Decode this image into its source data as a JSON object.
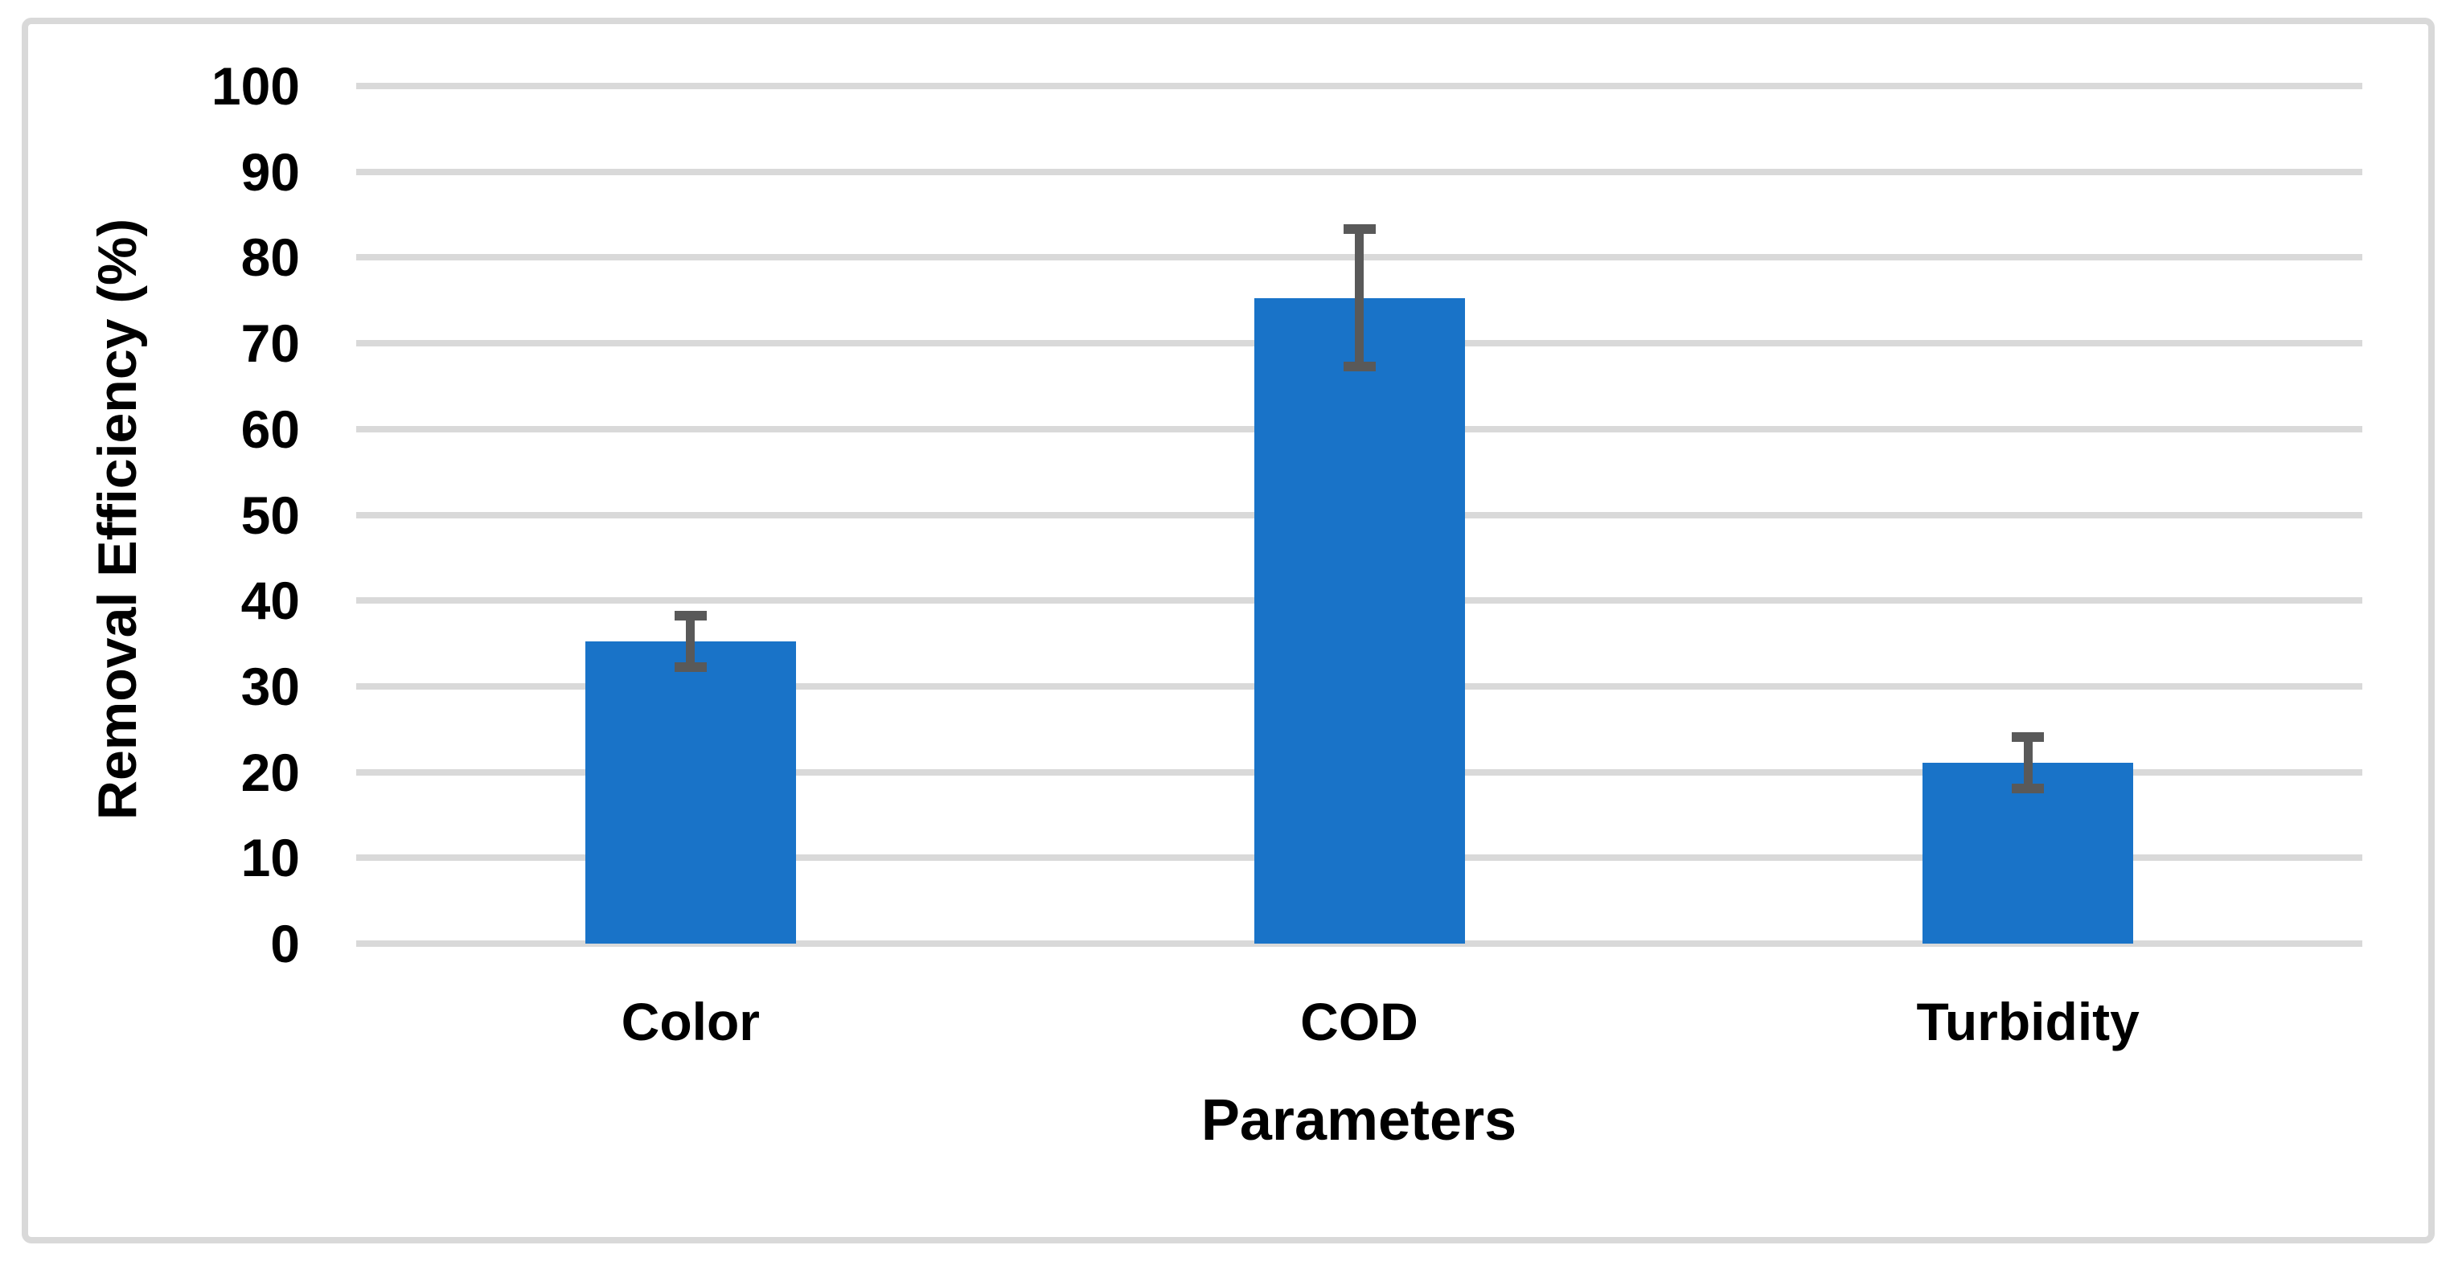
{
  "chart_data": {
    "type": "bar",
    "title": "",
    "xlabel": "Parameters",
    "ylabel": "Removal Efficiency (%)",
    "categories": [
      "Color",
      "COD",
      "Turbidity"
    ],
    "series": [
      {
        "name": "Removal Efficiency",
        "values": [
          35.2,
          75.3,
          21.1
        ],
        "errors": [
          3,
          8,
          3
        ]
      }
    ],
    "values": [
      35.2,
      75.3,
      21.1
    ],
    "errors": [
      3,
      8,
      3
    ],
    "ylim": [
      0,
      100
    ],
    "ytick_step": 10,
    "yticks": [
      0,
      10,
      20,
      30,
      40,
      50,
      60,
      70,
      80,
      90,
      100
    ],
    "grid": true,
    "legend": false,
    "error_bars": true,
    "colors": {
      "bar": "#1973C8",
      "err": "#595959",
      "grid": "#D9D9D9",
      "frame": "#D9D9D9",
      "text": "#000000",
      "background": "#FFFFFF"
    }
  }
}
